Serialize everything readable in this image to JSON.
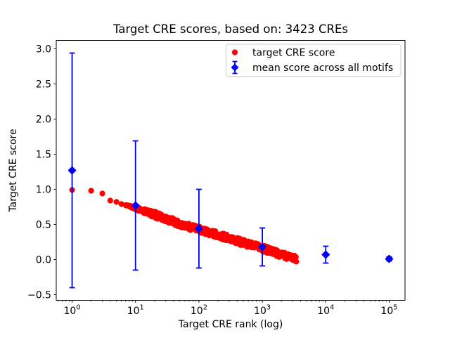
{
  "figure": {
    "background": "#ffffff"
  },
  "title": "Target CRE scores, based on: 3423 CREs",
  "axes": {
    "xlabel": "Target CRE rank (log)",
    "ylabel": "Target CRE score"
  },
  "legend": {
    "position": "upper right",
    "items": [
      {
        "label": "target CRE score",
        "marker": "circle",
        "color": "#ff0000"
      },
      {
        "label": "mean score across all motifs",
        "marker": "diamond-errorbar",
        "color": "#0000ff"
      }
    ]
  },
  "chart_data": {
    "type": "scatter",
    "title": "Target CRE scores, based on: 3423 CREs",
    "xlabel": "Target CRE rank (log)",
    "ylabel": "Target CRE score",
    "x_scale": "log10",
    "xlim_log10": [
      -0.25,
      5.25
    ],
    "ylim": [
      -0.58,
      3.12
    ],
    "grid": false,
    "legend_position": "upper right",
    "xticks": [
      {
        "value": 1,
        "base": "10",
        "exp": "0"
      },
      {
        "value": 10,
        "base": "10",
        "exp": "1"
      },
      {
        "value": 100,
        "base": "10",
        "exp": "2"
      },
      {
        "value": 1000,
        "base": "10",
        "exp": "3"
      },
      {
        "value": 10000,
        "base": "10",
        "exp": "4"
      },
      {
        "value": 100000,
        "base": "10",
        "exp": "5"
      }
    ],
    "yticks": [
      {
        "value": 3.0,
        "label": "3.0"
      },
      {
        "value": 2.5,
        "label": "2.5"
      },
      {
        "value": 2.0,
        "label": "2.0"
      },
      {
        "value": 1.5,
        "label": "1.5"
      },
      {
        "value": 1.0,
        "label": "1.0"
      },
      {
        "value": 0.5,
        "label": "0.5"
      },
      {
        "value": 0.0,
        "label": "0.0"
      },
      {
        "value": -0.5,
        "label": "−0.5"
      }
    ],
    "series": [
      {
        "name": "target CRE score",
        "type": "scatter",
        "marker": "circle",
        "color": "#ff0000",
        "n_points": 3423,
        "anchors": {
          "rank": [
            1,
            2,
            3,
            4,
            5,
            6,
            8,
            10,
            15,
            20,
            30,
            50,
            100,
            200,
            300,
            500,
            700,
            1000,
            1500,
            2000,
            3000,
            3423
          ],
          "score": [
            0.99,
            0.98,
            0.94,
            0.84,
            0.82,
            0.79,
            0.76,
            0.73,
            0.68,
            0.64,
            0.58,
            0.51,
            0.43,
            0.35,
            0.3,
            0.24,
            0.2,
            0.16,
            0.11,
            0.07,
            0.03,
            0.01
          ]
        },
        "band_halfwidth": 0.045
      },
      {
        "name": "mean score across all motifs",
        "type": "errorbar",
        "marker": "diamond",
        "color": "#0000ff",
        "rank": [
          1,
          10,
          100,
          1000,
          10000,
          100000
        ],
        "mean": [
          1.27,
          0.77,
          0.44,
          0.18,
          0.07,
          0.01
        ],
        "err": [
          1.67,
          0.92,
          0.56,
          0.27,
          0.12,
          0.03
        ]
      }
    ]
  }
}
